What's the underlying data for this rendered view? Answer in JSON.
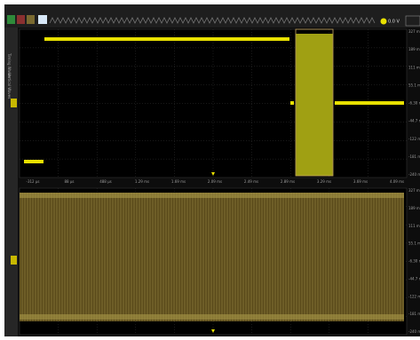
{
  "toolbar": {
    "readout": "0.0 V"
  },
  "sidebar": {
    "labels": [
      "Timing Waves",
      "Vertical Waves"
    ]
  },
  "upper_plot": {
    "y_labels": [
      "327 m",
      "189 m",
      "111 m",
      "55.1 m",
      "-6.30 m",
      "-44.7 m",
      "-122 m",
      "-181 m",
      "-240 m"
    ]
  },
  "x_axis": {
    "labels": [
      "-312 µs",
      "88 µs",
      "488 µs",
      "1.29 ms",
      "1.69 ms",
      "2.09 ms",
      "2.49 ms",
      "2.89 ms",
      "3.29 ms",
      "3.69 ms",
      "4.09 ms"
    ]
  },
  "lower_plot": {
    "y_labels": [
      "327 m",
      "189 m",
      "111 m",
      "55.1 m",
      "-6.30 m",
      "-44.7 m",
      "-122 m",
      "-181 m",
      "-240 m"
    ]
  }
}
